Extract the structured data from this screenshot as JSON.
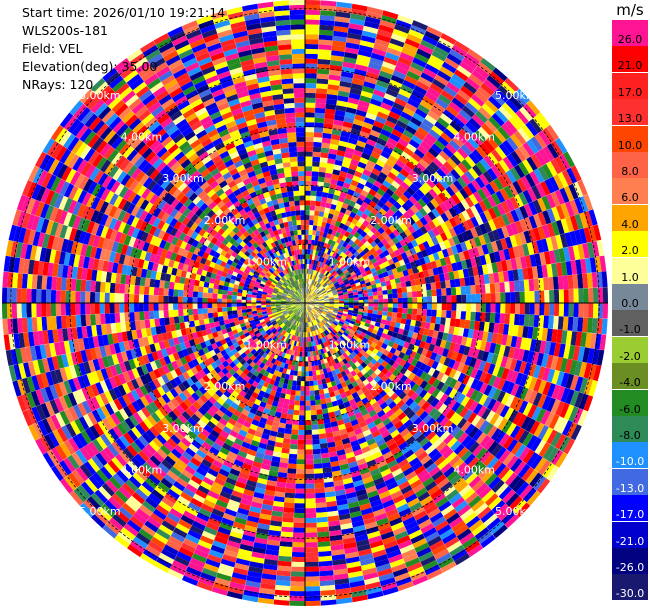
{
  "header": {
    "start_time": "Start time: 2026/01/10 19:21:14",
    "site": "WLS200s-181",
    "field": "Field: VEL",
    "elevation": "Elevation(deg): 35.00",
    "nrays": "NRays: 120"
  },
  "colorbar": {
    "unit": "m/s",
    "labels": [
      "26.0",
      "21.0",
      "17.0",
      "13.0",
      "10.0",
      "8.0",
      "6.0",
      "4.0",
      "2.0",
      "1.0",
      "0.0",
      "-1.0",
      "-2.0",
      "-4.0",
      "-6.0",
      "-8.0",
      "-10.0",
      "-13.0",
      "-17.0",
      "-21.0",
      "-26.0",
      "-30.0"
    ],
    "colors": [
      "#ff1493",
      "#ff0000",
      "#ff2020",
      "#ff3030",
      "#ff4500",
      "#ff6347",
      "#ff7f50",
      "#ffa500",
      "#ffff00",
      "#ffff99",
      "#778899",
      "#606060",
      "#9acd32",
      "#6b8e23",
      "#228b22",
      "#2e8b57",
      "#1e90ff",
      "#4169e1",
      "#0000ff",
      "#0000cd",
      "#000080",
      "#191970"
    ]
  },
  "chart_data": {
    "type": "heatmap",
    "field": "VEL",
    "unit": "m/s",
    "nrays": 120,
    "elevation_deg": 35.0,
    "range_rings_km": [
      1.0,
      2.0,
      3.0,
      4.0,
      5.0
    ],
    "ring_label_text": [
      "1.00km",
      "2.00km",
      "3.00km",
      "4.00km",
      "5.00km"
    ],
    "colorbar_range": [
      -30.0,
      26.0
    ]
  }
}
